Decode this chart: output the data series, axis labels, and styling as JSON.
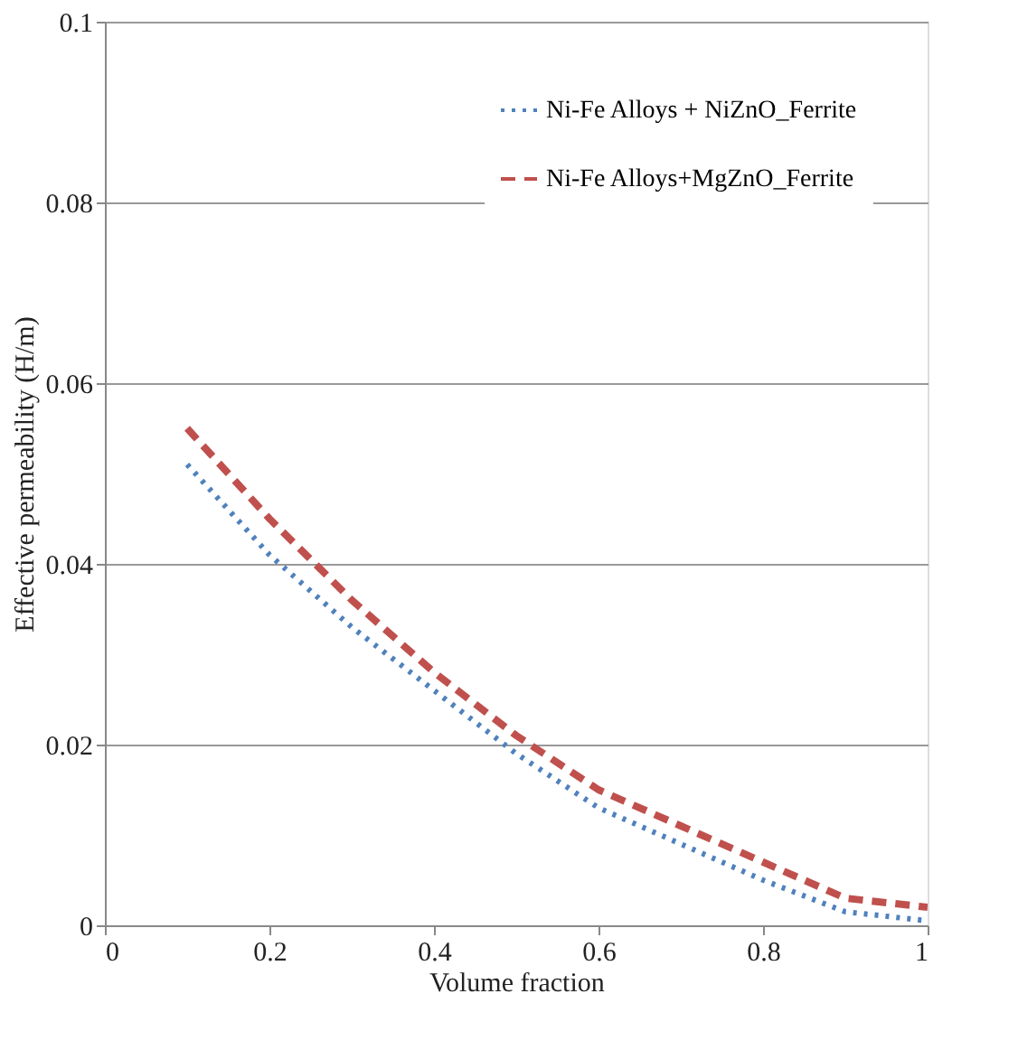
{
  "chart_data": {
    "type": "line",
    "xlabel": "Volume fraction",
    "ylabel": "Effective permeability (H/m)",
    "x": [
      0.1,
      0.2,
      0.3,
      0.4,
      0.5,
      0.6,
      0.7,
      0.8,
      0.9,
      1.0
    ],
    "series": [
      {
        "name": "Ni-Fe Alloys + NiZnO_Ferrite",
        "color": "#4f81bd",
        "line_style": "dotted",
        "values": [
          0.051,
          0.041,
          0.033,
          0.026,
          0.019,
          0.013,
          0.009,
          0.005,
          0.0015,
          0.0005
        ]
      },
      {
        "name": "Ni-Fe Alloys+MgZnO_Ferrite",
        "color": "#c0504d",
        "line_style": "dashed",
        "values": [
          0.055,
          0.045,
          0.036,
          0.028,
          0.021,
          0.015,
          0.011,
          0.007,
          0.003,
          0.002
        ]
      }
    ],
    "xlim": [
      0,
      1
    ],
    "xticks": [
      0,
      0.2,
      0.4,
      0.6,
      0.8,
      1
    ],
    "ylim": [
      0,
      0.1
    ],
    "yticks": [
      0,
      0.02,
      0.04,
      0.06,
      0.08,
      0.1
    ],
    "grid": "y",
    "legend": "top right",
    "marker": "none"
  }
}
